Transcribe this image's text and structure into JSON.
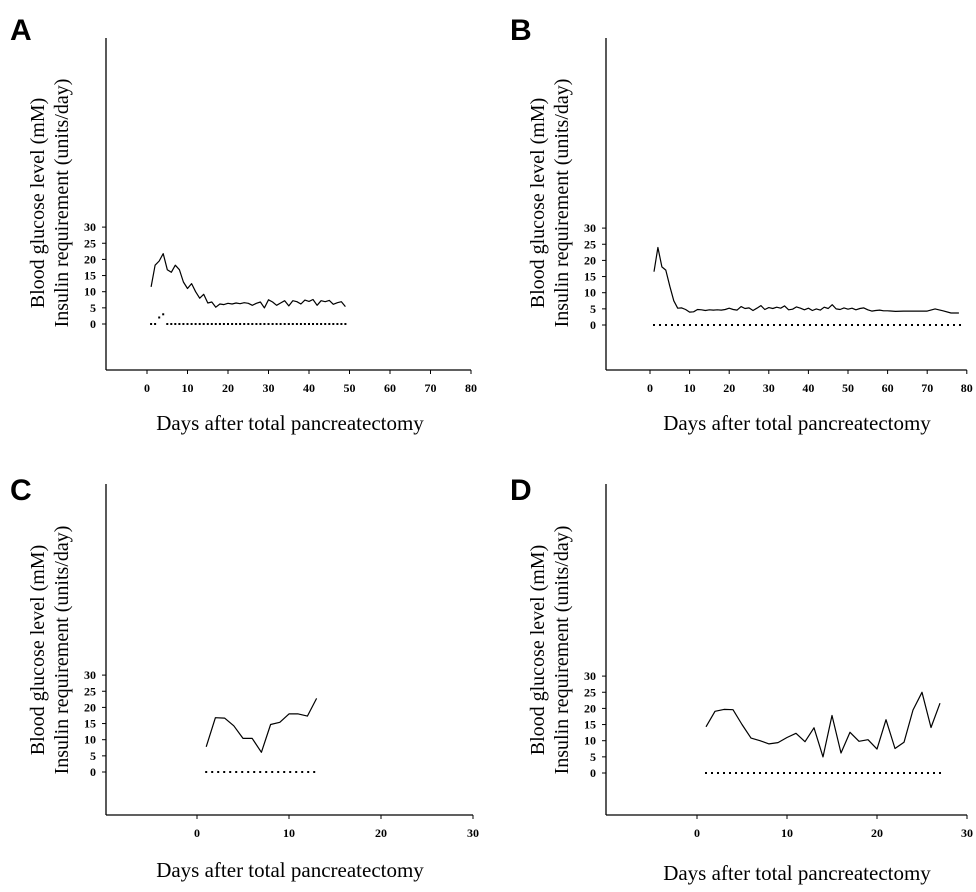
{
  "chart_data": [
    {
      "panel": "A",
      "type": "line",
      "xlabel": "Days after total pancreatectomy",
      "ylabel": [
        "Blood glucose level (mM)",
        "Insulin requirement (units/day)"
      ],
      "xlim": [
        -10,
        80
      ],
      "ylim": [
        -4,
        30
      ],
      "xticks": [
        0,
        10,
        20,
        30,
        40,
        50,
        60,
        70,
        80
      ],
      "yticks": [
        0,
        5,
        10,
        15,
        20,
        25,
        30
      ],
      "series": [
        {
          "style": "solid",
          "x": [
            1,
            2,
            3,
            4,
            5,
            6,
            7,
            8,
            9,
            10,
            11,
            12,
            13,
            14,
            15,
            16,
            17,
            18,
            19,
            20,
            21,
            22,
            23,
            24,
            25,
            26,
            27,
            28,
            29,
            30,
            31,
            32,
            33,
            34,
            35,
            36,
            37,
            38,
            39,
            40,
            41,
            42,
            43,
            44,
            45,
            46,
            47,
            48,
            49
          ],
          "y": [
            11.5,
            18.2,
            19.5,
            21.8,
            16.8,
            16,
            18.2,
            16.8,
            13,
            11,
            12.5,
            10,
            8,
            9.2,
            6.5,
            6.8,
            5.2,
            6.2,
            6,
            6.4,
            6.2,
            6.5,
            6.3,
            6.6,
            6.4,
            5.8,
            6.4,
            6.8,
            5,
            7.5,
            6.8,
            5.8,
            6.5,
            7.2,
            5.6,
            7.2,
            6.9,
            6.2,
            7.4,
            7,
            7.6,
            5.8,
            7.2,
            6.9,
            7.3,
            6.1,
            6.6,
            6.9,
            5.4
          ]
        },
        {
          "style": "dots",
          "x": [
            1,
            2,
            3,
            4,
            5,
            6,
            7,
            8,
            9,
            10,
            11,
            12,
            13,
            14,
            15,
            16,
            17,
            18,
            19,
            20,
            21,
            22,
            23,
            24,
            25,
            26,
            27,
            28,
            29,
            30,
            31,
            32,
            33,
            34,
            35,
            36,
            37,
            38,
            39,
            40,
            41,
            42,
            43,
            44,
            45,
            46,
            47,
            48,
            49
          ],
          "y": [
            0,
            0,
            2,
            3,
            0,
            0,
            0,
            0,
            0,
            0,
            0,
            0,
            0,
            0,
            0,
            0,
            0,
            0,
            0,
            0,
            0,
            0,
            0,
            0,
            0,
            0,
            0,
            0,
            0,
            0,
            0,
            0,
            0,
            0,
            0,
            0,
            0,
            0,
            0,
            0,
            0,
            0,
            0,
            0,
            0,
            0,
            0,
            0,
            0
          ]
        }
      ]
    },
    {
      "panel": "B",
      "type": "line",
      "xlabel": "Days after total pancreatectomy",
      "ylabel": [
        "Blood glucose level (mM)",
        "Insulin requirement (units/day)"
      ],
      "xlim": [
        -10,
        80
      ],
      "ylim": [
        -4,
        30
      ],
      "xticks": [
        0,
        10,
        20,
        30,
        40,
        50,
        60,
        70,
        80
      ],
      "yticks": [
        0,
        5,
        10,
        15,
        20,
        25,
        30
      ],
      "series": [
        {
          "style": "solid",
          "x": [
            1,
            2,
            3,
            4,
            5,
            6,
            7,
            8,
            9,
            10,
            11,
            12,
            13,
            14,
            15,
            16,
            17,
            18,
            19,
            20,
            21,
            22,
            23,
            24,
            25,
            26,
            27,
            28,
            29,
            30,
            31,
            32,
            33,
            34,
            35,
            36,
            37,
            38,
            39,
            40,
            41,
            42,
            43,
            44,
            45,
            46,
            47,
            48,
            49,
            50,
            51,
            52,
            53,
            54,
            55,
            56,
            57,
            58,
            59,
            60,
            62,
            64,
            66,
            68,
            70,
            72,
            74,
            76,
            78
          ],
          "y": [
            16.5,
            24,
            18,
            17,
            12,
            7.5,
            5.2,
            5.3,
            4.8,
            4,
            4.1,
            4.8,
            4.7,
            4.5,
            4.7,
            4.6,
            4.7,
            4.6,
            4.8,
            5.2,
            4.8,
            4.6,
            5.7,
            5.1,
            5.3,
            4.5,
            5.2,
            6,
            4.8,
            5.4,
            5.1,
            5.5,
            5.2,
            5.9,
            4.7,
            4.9,
            5.6,
            5.2,
            4.7,
            5.2,
            4.5,
            5,
            4.6,
            5.5,
            5.1,
            6.3,
            5,
            4.8,
            5.3,
            4.9,
            5.2,
            4.7,
            5.1,
            5.3,
            4.7,
            4.3,
            4.5,
            4.6,
            4.4,
            4.4,
            4.2,
            4.3,
            4.3,
            4.3,
            4.3,
            5,
            4.4,
            3.7,
            3.7
          ]
        },
        {
          "style": "dots",
          "x": [
            1,
            79
          ],
          "y": [
            0,
            0
          ]
        }
      ]
    },
    {
      "panel": "C",
      "type": "line",
      "xlabel": "Days after total pancreatectomy",
      "ylabel": [
        "Blood glucose level (mM)",
        "Insulin requirement (units/day)"
      ],
      "xlim": [
        -10,
        30
      ],
      "ylim": [
        -4,
        30
      ],
      "xticks": [
        0,
        10,
        20,
        30
      ],
      "yticks": [
        0,
        5,
        10,
        15,
        20,
        25,
        30
      ],
      "series": [
        {
          "style": "solid",
          "x": [
            1,
            2,
            3,
            4,
            5,
            6,
            7,
            8,
            9,
            10,
            11,
            12,
            13
          ],
          "y": [
            7.8,
            16.8,
            16.7,
            14.3,
            10.4,
            10.4,
            6.1,
            14.7,
            15.4,
            18,
            18,
            17.3,
            22.8
          ]
        },
        {
          "style": "dots",
          "x": [
            1,
            13
          ],
          "y": [
            0,
            0
          ]
        }
      ]
    },
    {
      "panel": "D",
      "type": "line",
      "xlabel": "Days after total pancreatectomy",
      "ylabel": [
        "Blood glucose level (mM)",
        "Insulin requirement (units/day)"
      ],
      "xlim": [
        -10,
        30
      ],
      "ylim": [
        -4,
        30
      ],
      "xticks": [
        0,
        10,
        20,
        30
      ],
      "yticks": [
        0,
        5,
        10,
        15,
        20,
        25,
        30
      ],
      "series": [
        {
          "style": "solid",
          "x": [
            1,
            2,
            3,
            4,
            5,
            6,
            7,
            8,
            9,
            10,
            11,
            12,
            13,
            14,
            15,
            16,
            17,
            18,
            19,
            20,
            21,
            22,
            23,
            24,
            25,
            26,
            27
          ],
          "y": [
            14.3,
            19.1,
            19.7,
            19.6,
            15,
            10.8,
            10,
            9,
            9.4,
            11,
            12.3,
            9.7,
            14,
            5,
            17.8,
            6.2,
            12.6,
            9.8,
            10.3,
            7.4,
            16.5,
            7.6,
            9.5,
            19.5,
            25,
            14.1,
            21.6
          ]
        },
        {
          "style": "dots",
          "x": [
            1,
            27
          ],
          "y": [
            0,
            0
          ]
        }
      ]
    }
  ]
}
